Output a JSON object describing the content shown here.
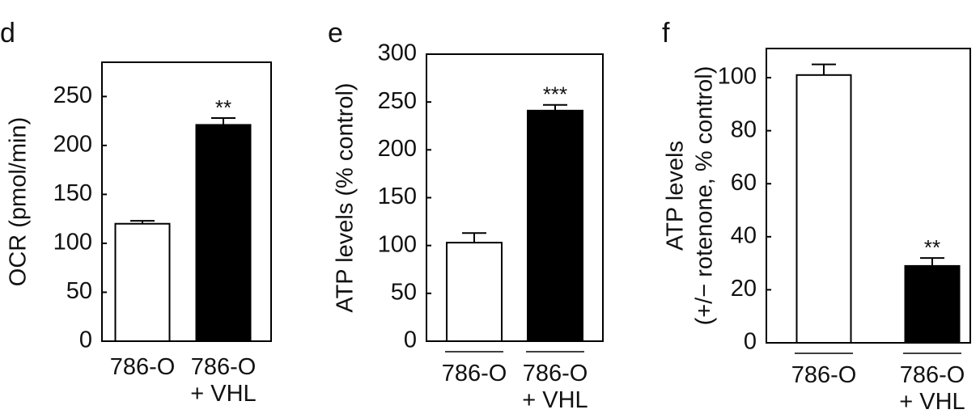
{
  "chart_data": [
    {
      "type": "bar",
      "label": "d",
      "y_label": [
        "OCR (pmol/min)"
      ],
      "categories": [
        "786-O",
        "786-O\n+ VHL"
      ],
      "values": [
        120,
        221
      ],
      "errors": [
        3,
        7
      ],
      "colors": [
        "#ffffff",
        "#000000"
      ],
      "bar_labels": [
        null,
        "**"
      ],
      "ylim": [
        0,
        285
      ],
      "yticks": [
        0,
        50,
        100,
        150,
        200,
        250
      ]
    },
    {
      "type": "bar",
      "label": "e",
      "y_label": [
        "ATP levels (% control)"
      ],
      "categories": [
        "786-O",
        "786-O\n+ VHL"
      ],
      "values": [
        103,
        241
      ],
      "errors": [
        10,
        6
      ],
      "colors": [
        "#ffffff",
        "#000000"
      ],
      "bar_labels": [
        null,
        "***"
      ],
      "ylim": [
        0,
        300
      ],
      "yticks": [
        0,
        50,
        100,
        150,
        200,
        250,
        300
      ]
    },
    {
      "type": "bar",
      "label": "f",
      "y_label": [
        "ATP levels",
        "(+/− rotenone, % control)"
      ],
      "categories": [
        "786-O",
        "786-O\n+ VHL"
      ],
      "values": [
        101,
        29
      ],
      "errors": [
        4,
        3
      ],
      "colors": [
        "#ffffff",
        "#000000"
      ],
      "bar_labels": [
        null,
        "**"
      ],
      "ylim": [
        0,
        111
      ],
      "yticks": [
        0,
        20,
        40,
        60,
        80,
        100
      ]
    }
  ]
}
